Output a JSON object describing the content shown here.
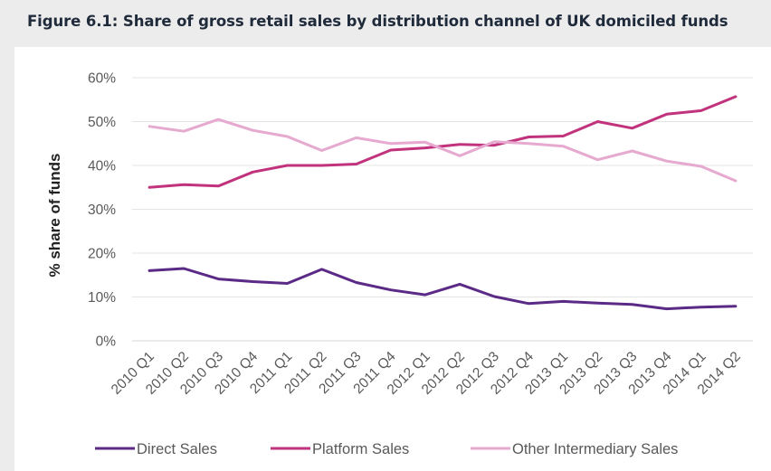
{
  "chart_data": {
    "type": "line",
    "title": "Figure 6.1: Share of gross retail sales by distribution channel of UK domiciled funds",
    "xlabel": "",
    "ylabel": "% share of funds",
    "ylim": [
      0,
      60
    ],
    "yticks": [
      0,
      10,
      20,
      30,
      40,
      50,
      60
    ],
    "ytick_labels": [
      "0%",
      "10%",
      "20%",
      "30%",
      "40%",
      "50%",
      "60%"
    ],
    "grid": true,
    "legend_position": "bottom",
    "categories": [
      "2010 Q1",
      "2010 Q2",
      "2010 Q3",
      "2010 Q4",
      "2011 Q1",
      "2011 Q2",
      "2011 Q3",
      "2011 Q4",
      "2012 Q1",
      "2012 Q2",
      "2012 Q3",
      "2012 Q4",
      "2013 Q1",
      "2013 Q2",
      "2013 Q3",
      "2013 Q4",
      "2014 Q1",
      "2014 Q2"
    ],
    "series": [
      {
        "name": "Direct Sales",
        "color": "#5b2a86",
        "values": [
          16.0,
          16.5,
          14.1,
          13.5,
          13.1,
          16.3,
          13.3,
          11.6,
          10.5,
          12.9,
          10.1,
          8.5,
          9.0,
          8.6,
          8.3,
          7.3,
          7.7,
          7.9
        ]
      },
      {
        "name": "Platform Sales",
        "color": "#c1337c",
        "values": [
          35.0,
          35.6,
          35.3,
          38.5,
          40.0,
          40.0,
          40.3,
          43.5,
          44.0,
          44.8,
          44.6,
          46.5,
          46.7,
          50.0,
          48.5,
          51.7,
          52.5,
          55.7
        ]
      },
      {
        "name": "Other Intermediary Sales",
        "color": "#e6a9cf",
        "values": [
          48.9,
          47.8,
          50.5,
          48.0,
          46.6,
          43.4,
          46.3,
          45.0,
          45.3,
          42.2,
          45.4,
          45.0,
          44.4,
          41.3,
          43.3,
          41.0,
          39.8,
          36.5
        ]
      }
    ]
  }
}
